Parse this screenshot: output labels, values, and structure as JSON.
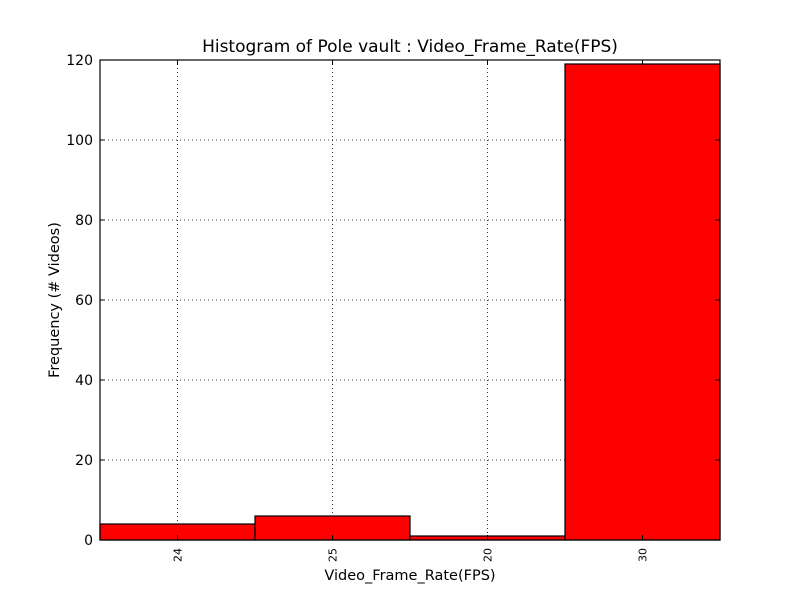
{
  "chart_data": {
    "type": "bar",
    "title": "Histogram of Pole vault : Video_Frame_Rate(FPS)",
    "xlabel": "Video_Frame_Rate(FPS)",
    "ylabel": "Frequency (# Videos)",
    "categories": [
      "24",
      "25",
      "20",
      "30"
    ],
    "values": [
      4,
      6,
      1,
      119
    ],
    "ylim": [
      0,
      120
    ],
    "yticks": [
      "0",
      "20",
      "40",
      "60",
      "80",
      "100",
      "120"
    ],
    "grid": true,
    "bar_color": "#ff0000",
    "edge_color": "#000000"
  }
}
